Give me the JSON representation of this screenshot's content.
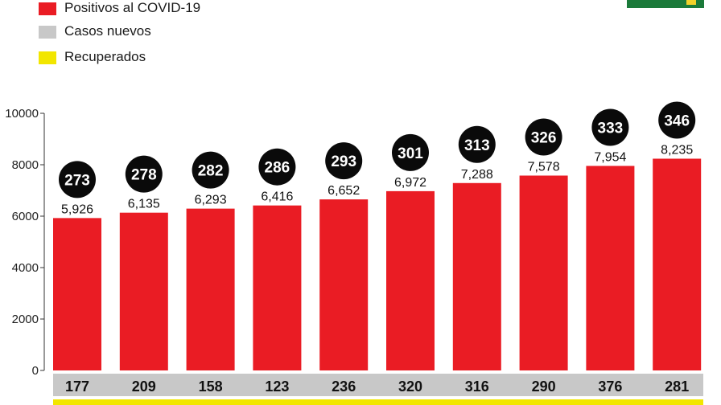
{
  "legend": [
    {
      "label": "Positivos al COVID-19",
      "color": "#ea1c24"
    },
    {
      "label": "Casos nuevos",
      "color": "#c8c8c8"
    },
    {
      "label": "Recuperados",
      "color": "#f2e600"
    }
  ],
  "colors": {
    "positivos": "#ea1c24",
    "nuevos": "#c8c8c8",
    "recuperados": "#f2e600",
    "badge": "#0a0a0a",
    "logo": "#1b7a3a"
  },
  "chart_data": {
    "type": "bar",
    "ylim": [
      0,
      10000
    ],
    "yticks": [
      "0",
      "2000",
      "4000",
      "6000",
      "8000",
      "10000"
    ],
    "grid": false,
    "legend_position": "top-left",
    "series": [
      {
        "name": "Positivos al COVID-19",
        "values": [
          5926,
          6135,
          6293,
          6416,
          6652,
          6972,
          7288,
          7578,
          7954,
          8235
        ],
        "labels": [
          "5,926",
          "6,135",
          "6,293",
          "6,416",
          "6,652",
          "6,972",
          "7,288",
          "7,578",
          "7,954",
          "8,235"
        ]
      },
      {
        "name": "Casos nuevos",
        "values": [
          177,
          209,
          158,
          123,
          236,
          320,
          316,
          290,
          376,
          281
        ],
        "labels": [
          "177",
          "209",
          "158",
          "123",
          "236",
          "320",
          "316",
          "290",
          "376",
          "281"
        ]
      },
      {
        "values": [
          273,
          278,
          282,
          286,
          293,
          301,
          313,
          326,
          333,
          346
        ],
        "labels": [
          "273",
          "278",
          "282",
          "286",
          "293",
          "301",
          "313",
          "326",
          "333",
          "346"
        ]
      }
    ]
  }
}
